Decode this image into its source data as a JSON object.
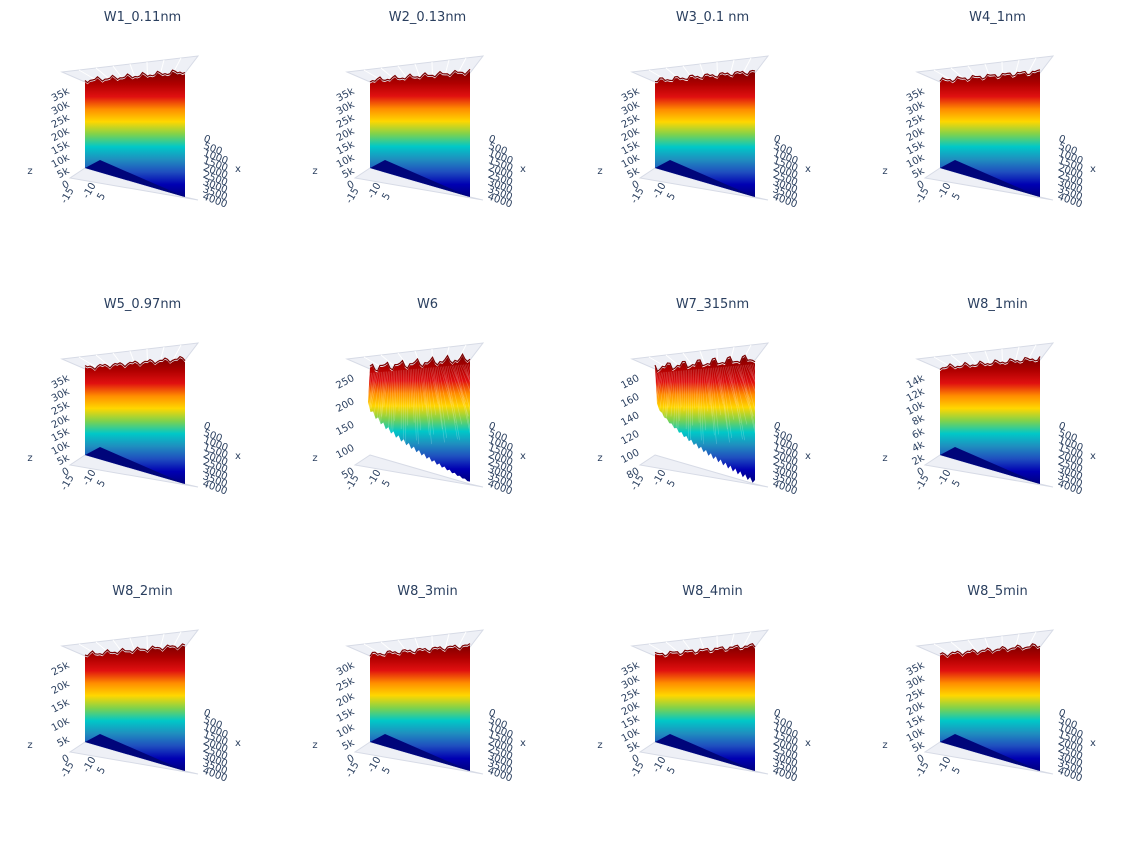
{
  "layout": {
    "rows": 3,
    "cols": 4
  },
  "colorscale": [
    "#00007f",
    "#0000b2",
    "#1f4fbf",
    "#1f8fbf",
    "#00c8c8",
    "#7fd24c",
    "#ffd700",
    "#ff8c00",
    "#e01010",
    "#b00000",
    "#800000"
  ],
  "chart_data": [
    {
      "type": "surface",
      "title": "W1_0.11nm",
      "axes": {
        "x": "x",
        "z": "z"
      },
      "zlim": [
        0,
        35000
      ],
      "z_ticks": [
        "35k",
        "30k",
        "25k",
        "20k",
        "15k",
        "10k",
        "5k",
        "0"
      ],
      "y_ticks": [
        "-15",
        "-10",
        "5"
      ],
      "x_ticks": [
        "0",
        "500",
        "1000",
        "1500",
        "2000",
        "2500",
        "3000",
        "3500",
        "4000"
      ],
      "style": "smooth"
    },
    {
      "type": "surface",
      "title": "W2_0.13nm",
      "axes": {
        "x": "x",
        "z": "z"
      },
      "zlim": [
        0,
        35000
      ],
      "z_ticks": [
        "35k",
        "30k",
        "25k",
        "20k",
        "15k",
        "10k",
        "5k",
        "0"
      ],
      "y_ticks": [
        "-15",
        "-10",
        "5"
      ],
      "x_ticks": [
        "0",
        "500",
        "1000",
        "1500",
        "2000",
        "2500",
        "3000",
        "3500",
        "4000"
      ],
      "style": "smooth"
    },
    {
      "type": "surface",
      "title": "W3_0.1 nm",
      "axes": {
        "x": "x",
        "z": "z"
      },
      "zlim": [
        0,
        35000
      ],
      "z_ticks": [
        "35k",
        "30k",
        "25k",
        "20k",
        "15k",
        "10k",
        "5k",
        "0"
      ],
      "y_ticks": [
        "-15",
        "-10",
        "5"
      ],
      "x_ticks": [
        "0",
        "500",
        "1000",
        "1500",
        "2000",
        "2500",
        "3000",
        "3500",
        "4000"
      ],
      "style": "smooth"
    },
    {
      "type": "surface",
      "title": "W4_1nm",
      "axes": {
        "x": "x",
        "z": "z"
      },
      "zlim": [
        0,
        35000
      ],
      "z_ticks": [
        "35k",
        "30k",
        "25k",
        "20k",
        "15k",
        "10k",
        "5k",
        "0"
      ],
      "y_ticks": [
        "-15",
        "-10",
        "5"
      ],
      "x_ticks": [
        "0",
        "500",
        "1000",
        "1500",
        "2000",
        "2500",
        "3000",
        "3500",
        "4000"
      ],
      "style": "smooth"
    },
    {
      "type": "surface",
      "title": "W5_0.97nm",
      "axes": {
        "x": "x",
        "z": "z"
      },
      "zlim": [
        0,
        35000
      ],
      "z_ticks": [
        "35k",
        "30k",
        "25k",
        "20k",
        "15k",
        "10k",
        "5k",
        "0"
      ],
      "y_ticks": [
        "-15",
        "-10",
        "5"
      ],
      "x_ticks": [
        "0",
        "500",
        "1000",
        "1500",
        "2000",
        "2500",
        "3000",
        "3500",
        "4000"
      ],
      "style": "smooth"
    },
    {
      "type": "surface",
      "title": "W6",
      "axes": {
        "x": "x",
        "z": "z"
      },
      "zlim": [
        50,
        250
      ],
      "z_ticks": [
        "250",
        "200",
        "150",
        "100",
        "50"
      ],
      "y_ticks": [
        "-15",
        "-10",
        "5"
      ],
      "x_ticks": [
        "0",
        "500",
        "1000",
        "1500",
        "2000",
        "2500",
        "3000",
        "3500",
        "4000"
      ],
      "style": "noisy"
    },
    {
      "type": "surface",
      "title": "W7_315nm",
      "axes": {
        "x": "x",
        "z": "z"
      },
      "zlim": [
        80,
        180
      ],
      "z_ticks": [
        "180",
        "160",
        "140",
        "120",
        "100",
        "80"
      ],
      "y_ticks": [
        "-15",
        "-10",
        "5"
      ],
      "x_ticks": [
        "0",
        "500",
        "1000",
        "1500",
        "2000",
        "2500",
        "3000",
        "3500",
        "4000"
      ],
      "style": "noisy"
    },
    {
      "type": "surface",
      "title": "W8_1min",
      "axes": {
        "x": "x",
        "z": "z"
      },
      "zlim": [
        0,
        14000
      ],
      "z_ticks": [
        "14k",
        "12k",
        "10k",
        "8k",
        "6k",
        "4k",
        "2k",
        "0"
      ],
      "y_ticks": [
        "-15",
        "-10",
        "5"
      ],
      "x_ticks": [
        "0",
        "500",
        "1000",
        "1500",
        "2000",
        "2500",
        "3000",
        "3500",
        "4000"
      ],
      "style": "smooth"
    },
    {
      "type": "surface",
      "title": "W8_2min",
      "axes": {
        "x": "x",
        "z": "z"
      },
      "zlim": [
        0,
        25000
      ],
      "z_ticks": [
        "25k",
        "20k",
        "15k",
        "10k",
        "5k",
        "0"
      ],
      "y_ticks": [
        "-15",
        "-10",
        "5"
      ],
      "x_ticks": [
        "0",
        "500",
        "1000",
        "1500",
        "2000",
        "2500",
        "3000",
        "3500",
        "4000"
      ],
      "style": "smooth"
    },
    {
      "type": "surface",
      "title": "W8_3min",
      "axes": {
        "x": "x",
        "z": "z"
      },
      "zlim": [
        0,
        30000
      ],
      "z_ticks": [
        "30k",
        "25k",
        "20k",
        "15k",
        "10k",
        "5k",
        "0"
      ],
      "y_ticks": [
        "-15",
        "-10",
        "5"
      ],
      "x_ticks": [
        "0",
        "500",
        "1000",
        "1500",
        "2000",
        "2500",
        "3000",
        "3500",
        "4000"
      ],
      "style": "smooth"
    },
    {
      "type": "surface",
      "title": "W8_4min",
      "axes": {
        "x": "x",
        "z": "z"
      },
      "zlim": [
        0,
        35000
      ],
      "z_ticks": [
        "35k",
        "30k",
        "25k",
        "20k",
        "15k",
        "10k",
        "5k",
        "0"
      ],
      "y_ticks": [
        "-15",
        "-10",
        "5"
      ],
      "x_ticks": [
        "0",
        "500",
        "1000",
        "1500",
        "2000",
        "2500",
        "3000",
        "3500",
        "4000"
      ],
      "style": "smooth"
    },
    {
      "type": "surface",
      "title": "W8_5min",
      "axes": {
        "x": "x",
        "z": "z"
      },
      "zlim": [
        0,
        35000
      ],
      "z_ticks": [
        "35k",
        "30k",
        "25k",
        "20k",
        "15k",
        "10k",
        "5k",
        "0"
      ],
      "y_ticks": [
        "-15",
        "-10",
        "5"
      ],
      "x_ticks": [
        "0",
        "500",
        "1000",
        "1500",
        "2000",
        "2500",
        "3000",
        "3500",
        "4000"
      ],
      "style": "smooth"
    }
  ]
}
